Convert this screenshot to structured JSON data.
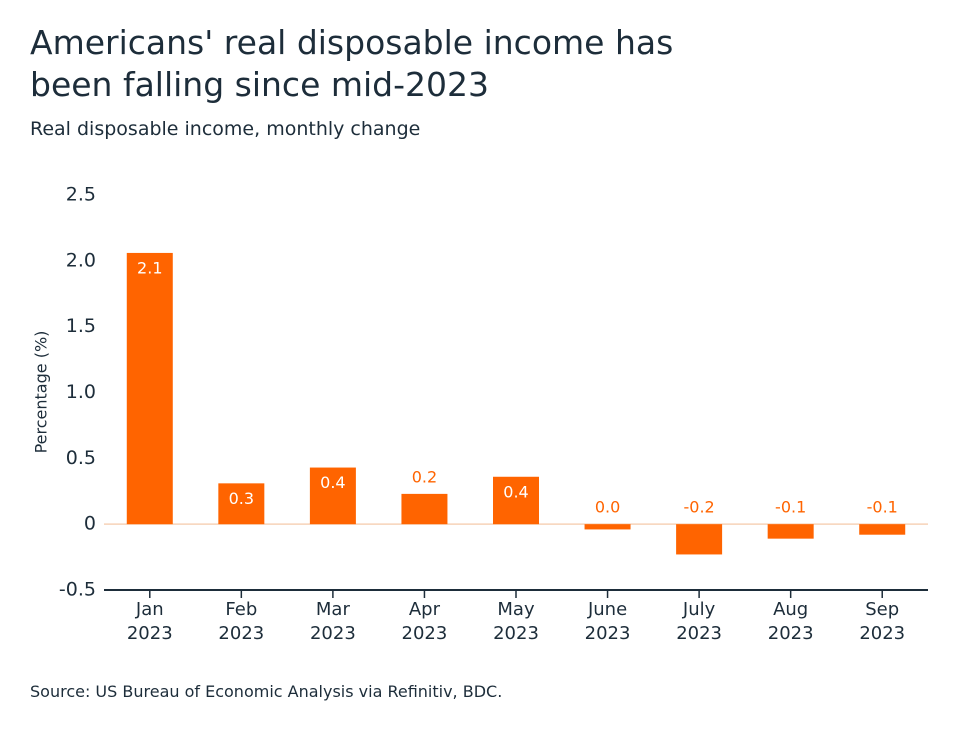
{
  "chart_data": {
    "type": "bar",
    "title": "Americans' real disposable income has been falling since mid-2023",
    "subtitle": "Real disposable income, monthly change",
    "y_label": "Percentage (%)",
    "source": "Source: US Bureau of Economic Analysis via Refinitiv, BDC.",
    "categories": [
      "Jan 2023",
      "Feb 2023",
      "Mar 2023",
      "Apr 2023",
      "May 2023",
      "June 2023",
      "July 2023",
      "Aug 2023",
      "Sep 2023"
    ],
    "values": [
      2.06,
      0.31,
      0.43,
      0.23,
      0.36,
      -0.04,
      -0.23,
      -0.11,
      -0.08
    ],
    "value_labels": [
      "2.1",
      "0.3",
      "0.4",
      "0.2",
      "0.4",
      "0.0",
      "-0.2",
      "-0.1",
      "-0.1"
    ],
    "color": "#ff6400",
    "ylim": [
      -0.5,
      2.5
    ],
    "yticks": [
      2.5,
      {
        "value": 2,
        "label": "2.0"
      },
      1.5,
      {
        "value": 1,
        "label": "1.0"
      },
      0.5,
      0,
      -0.5
    ],
    "grid": false
  }
}
